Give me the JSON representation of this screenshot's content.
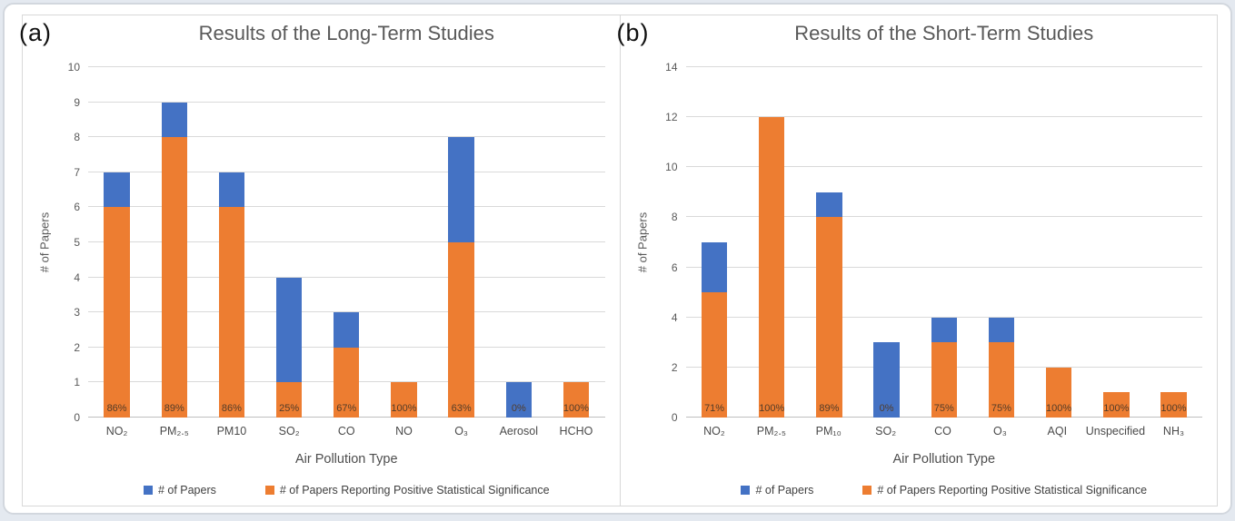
{
  "colors": {
    "total_bar": "#4472C4",
    "positive_bar": "#ED7D31",
    "gridline": "#D9D9D9",
    "axis_line": "#BFBFBF",
    "title_text": "#595959",
    "percent_label_text": "#533C28",
    "page_background": "#E4E9F0",
    "card_border": "#D2D7DE",
    "frame_border": "#D8D8D8"
  },
  "chart_data": [
    {
      "type": "bar",
      "panel_label": "(a)",
      "title": "Results of the Long-Term Studies",
      "xlabel": "Air Pollution Type",
      "ylabel": "# of Papers",
      "ylim": [
        0,
        10
      ],
      "ytick_step": 1,
      "grid": "horizontal",
      "legend_position": "bottom",
      "categories": [
        "NO₂",
        "PM₂.₅",
        "PM10",
        "SO₂",
        "CO",
        "NO",
        "O₃",
        "Aerosol",
        "HCHO"
      ],
      "series": [
        {
          "name": "# of Papers",
          "values": [
            7,
            9,
            7,
            4,
            3,
            1,
            8,
            1,
            1
          ]
        },
        {
          "name": "# of Papers Reporting Positive Statistical Significance",
          "values": [
            6,
            8,
            6,
            1,
            2,
            1,
            5,
            0,
            1
          ]
        }
      ],
      "bar_labels": [
        "86%",
        "89%",
        "86%",
        "25%",
        "67%",
        "100%",
        "63%",
        "0%",
        "100%"
      ]
    },
    {
      "type": "bar",
      "panel_label": "(b)",
      "title": "Results of the Short-Term Studies",
      "xlabel": "Air Pollution Type",
      "ylabel": "# of Papers",
      "ylim": [
        0,
        14
      ],
      "ytick_step": 2,
      "grid": "horizontal",
      "legend_position": "bottom",
      "categories": [
        "NO₂",
        "PM₂.₅",
        "PM₁₀",
        "SO₂",
        "CO",
        "O₃",
        "AQI",
        "Unspecified",
        "NH₃"
      ],
      "series": [
        {
          "name": "# of Papers",
          "values": [
            7,
            12,
            9,
            3,
            4,
            4,
            2,
            1,
            1
          ]
        },
        {
          "name": "# of Papers Reporting Positive Statistical Significance",
          "values": [
            5,
            12,
            8,
            0,
            3,
            3,
            2,
            1,
            1
          ]
        }
      ],
      "bar_labels": [
        "71%",
        "100%",
        "89%",
        "0%",
        "75%",
        "75%",
        "100%",
        "100%",
        "100%"
      ]
    }
  ]
}
